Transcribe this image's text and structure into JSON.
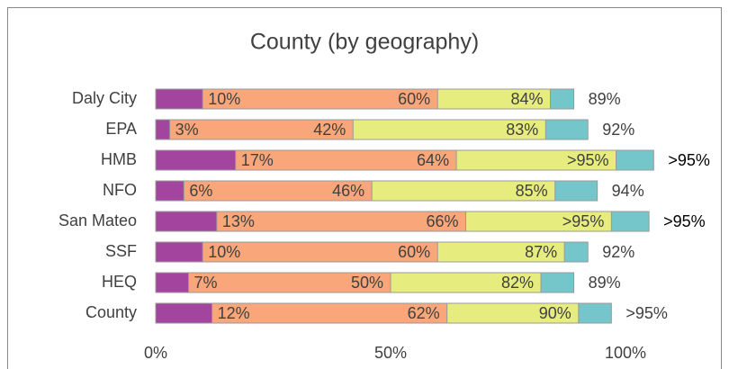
{
  "chart_data": {
    "type": "bar",
    "orientation": "horizontal",
    "layout": "overlapping",
    "title": "County (by geography)",
    "categories": [
      "Daly City",
      "EPA",
      "HMB",
      "NFO",
      "San Mateo",
      "SSF",
      "HEQ",
      "County"
    ],
    "series": [
      {
        "color": "#a3449e",
        "values": [
          10,
          3,
          17,
          6,
          13,
          10,
          7,
          12
        ],
        "value_labels": [
          "10%",
          "3%",
          "17%",
          "6%",
          "13%",
          "10%",
          "7%",
          "12%"
        ]
      },
      {
        "color": "#f9a77a",
        "values": [
          60,
          42,
          64,
          46,
          66,
          60,
          50,
          62
        ],
        "value_labels": [
          "60%",
          "42%",
          "64%",
          "46%",
          "66%",
          "60%",
          "50%",
          "62%"
        ]
      },
      {
        "color": "#e6ec7e",
        "values": [
          84,
          83,
          98,
          85,
          97,
          87,
          82,
          90
        ],
        "value_labels": [
          "84%",
          "83%",
          ">95%",
          "85%",
          ">95%",
          "87%",
          "82%",
          "90%"
        ]
      },
      {
        "color": "#74c6ca",
        "values": [
          89,
          92,
          106,
          94,
          105,
          92,
          89,
          97
        ],
        "value_labels": [
          "89%",
          "92%",
          ">95%",
          "94%",
          ">95%",
          "92%",
          "89%",
          ">95%"
        ]
      }
    ],
    "xlim": [
      0,
      100
    ],
    "xticks": [
      {
        "value": 0,
        "label": "0%"
      },
      {
        "value": 50,
        "label": "50%"
      },
      {
        "value": 100,
        "label": "100%"
      }
    ]
  }
}
